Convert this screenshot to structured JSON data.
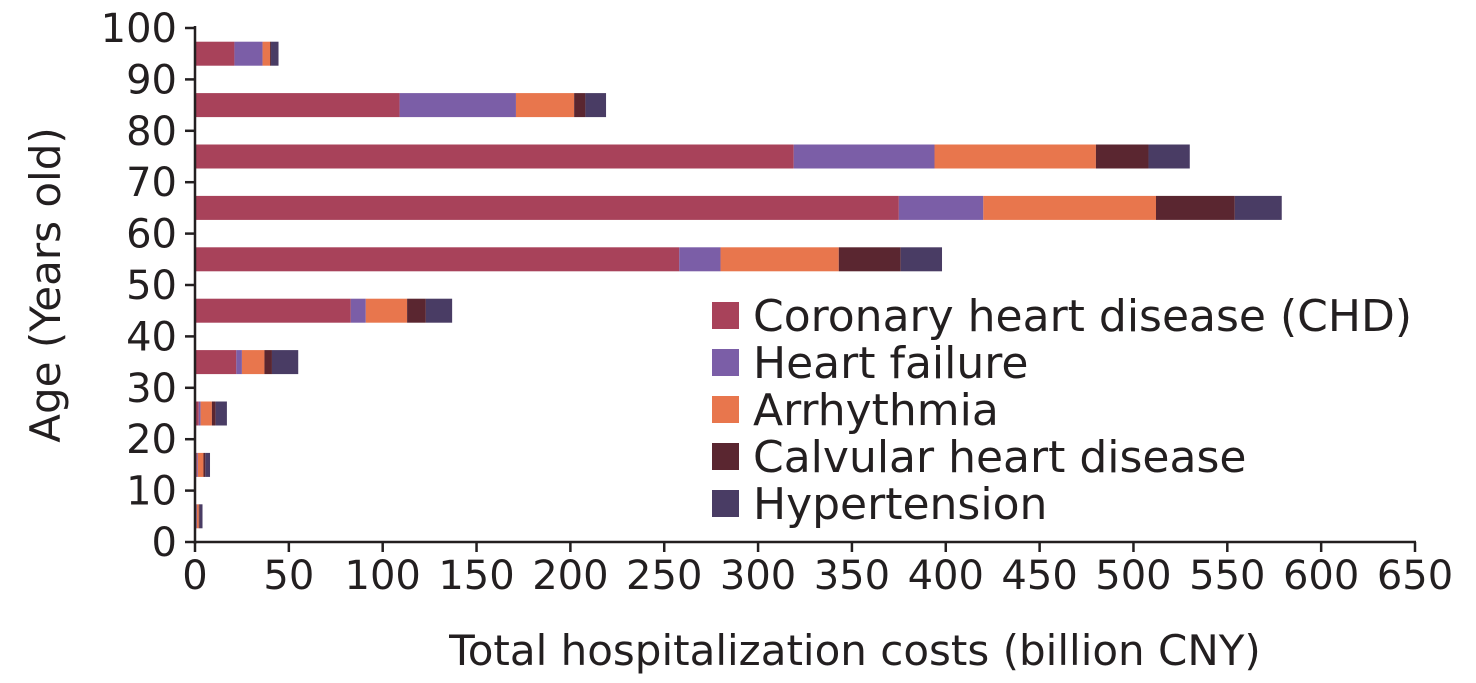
{
  "chart_data": {
    "type": "bar",
    "orientation": "horizontal",
    "stacked": true,
    "title": "",
    "xlabel": "Total hospitalization costs (billion CNY)",
    "ylabel": "Age (Years old)",
    "xlim": [
      0,
      650
    ],
    "ylim": [
      0,
      100
    ],
    "x_ticks": [
      "0",
      "50",
      "100",
      "150",
      "200",
      "250",
      "300",
      "350",
      "400",
      "450",
      "500",
      "550",
      "600",
      "650"
    ],
    "y_ticks": [
      "0",
      "10",
      "20",
      "30",
      "40",
      "50",
      "60",
      "70",
      "80",
      "90",
      "100"
    ],
    "grid": false,
    "legend_position": "lower-right",
    "categories": [
      "0-9",
      "10-19",
      "20-29",
      "30-39",
      "40-49",
      "50-59",
      "60-69",
      "70-79",
      "80-89",
      "90-99"
    ],
    "category_centers": [
      5,
      15,
      25,
      35,
      45,
      55,
      65,
      75,
      85,
      95
    ],
    "series": [
      {
        "name": "Coronary heart disease (CHD)",
        "color": "#a8425a",
        "values": [
          0.5,
          1,
          2,
          22,
          83,
          258,
          375,
          319,
          109,
          21
        ]
      },
      {
        "name": "Heart failure",
        "color": "#7b5ea7",
        "values": [
          0.5,
          0.5,
          1,
          3,
          8,
          22,
          45,
          75,
          62,
          15
        ]
      },
      {
        "name": "Arrhythmia",
        "color": "#e8764d",
        "values": [
          1,
          3,
          6,
          12,
          22,
          63,
          92,
          86,
          31,
          4
        ]
      },
      {
        "name": "Calvular heart disease",
        "color": "#5a2630",
        "values": [
          0.5,
          1,
          2,
          4,
          10,
          33,
          42,
          28,
          6,
          0.5
        ]
      },
      {
        "name": "Hypertension",
        "color": "#493c64",
        "values": [
          1.5,
          2.5,
          6,
          14,
          14,
          22,
          25,
          22,
          11,
          4
        ]
      }
    ]
  }
}
